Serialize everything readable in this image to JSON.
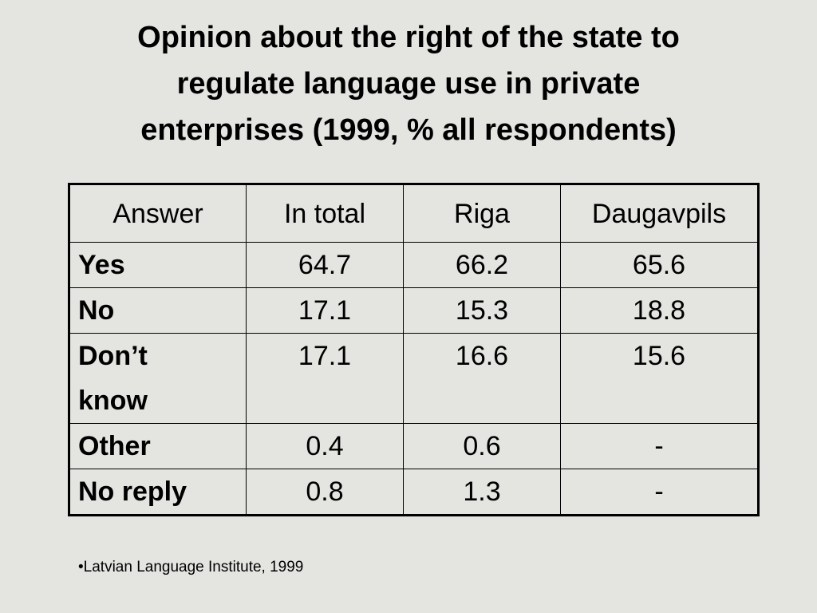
{
  "title_lines": [
    "Opinion about the right of the state to",
    "regulate language use in private",
    "enterprises (1999, % all respondents)"
  ],
  "table": {
    "header": [
      "Answer",
      "In total",
      "Riga",
      "Daugavpils"
    ],
    "rows": [
      [
        "Yes",
        64.7,
        66.2,
        65.6
      ],
      [
        "No",
        17.1,
        15.3,
        18.8
      ],
      [
        "Don’t know",
        17.1,
        16.6,
        15.6
      ],
      [
        "Other",
        0.4,
        0.6,
        "-"
      ],
      [
        "No reply",
        0.8,
        1.3,
        "-"
      ]
    ]
  },
  "footnote": "•Latvian Language Institute, 1999"
}
